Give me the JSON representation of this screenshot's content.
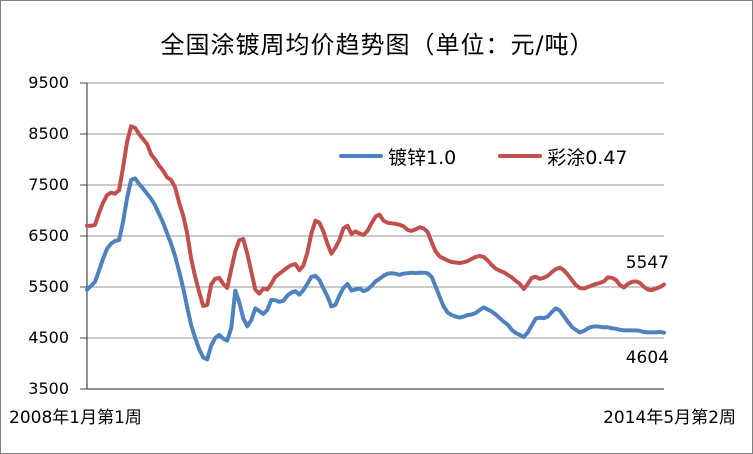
{
  "window": {
    "background": "#FFFFFF",
    "border_color": "#7F7F7F"
  },
  "chart_data": {
    "type": "line",
    "title": "全国涂镀周均价趋势图（单位：元/吨）",
    "grid": true,
    "legend_position": "inside-top-right-of-center",
    "x_axis": {
      "start_label": "2008年1月第1周",
      "end_label": "2014年5月第2周"
    },
    "y_axis": {
      "min": 3500,
      "max": 9500,
      "step": 1000,
      "ticks": [
        9500,
        8500,
        7500,
        6500,
        5500,
        4500,
        3500
      ]
    },
    "axis_color": "#4a4a4a",
    "grid_color": "#969696",
    "series": [
      {
        "name": "镀锌1.0",
        "color": "#4F81BD",
        "end_label": "4604",
        "end_label_side": "below",
        "values": [
          5450,
          5520,
          5600,
          5820,
          6050,
          6250,
          6350,
          6400,
          6420,
          6780,
          7250,
          7600,
          7630,
          7520,
          7430,
          7330,
          7230,
          7100,
          6930,
          6760,
          6550,
          6350,
          6100,
          5800,
          5480,
          5100,
          4750,
          4500,
          4280,
          4120,
          4080,
          4350,
          4500,
          4560,
          4490,
          4450,
          4700,
          5430,
          5200,
          4880,
          4730,
          4850,
          5080,
          5030,
          4970,
          5050,
          5250,
          5240,
          5210,
          5230,
          5330,
          5390,
          5420,
          5350,
          5440,
          5560,
          5700,
          5720,
          5640,
          5470,
          5320,
          5120,
          5150,
          5330,
          5480,
          5560,
          5430,
          5450,
          5470,
          5420,
          5450,
          5520,
          5610,
          5660,
          5720,
          5760,
          5770,
          5760,
          5740,
          5760,
          5770,
          5780,
          5770,
          5780,
          5780,
          5770,
          5700,
          5510,
          5310,
          5120,
          5000,
          4950,
          4920,
          4900,
          4920,
          4950,
          4960,
          4990,
          5050,
          5100,
          5060,
          5020,
          4960,
          4890,
          4820,
          4760,
          4660,
          4600,
          4560,
          4520,
          4610,
          4750,
          4880,
          4900,
          4890,
          4920,
          5010,
          5080,
          5040,
          4930,
          4820,
          4720,
          4660,
          4610,
          4640,
          4690,
          4720,
          4730,
          4720,
          4710,
          4710,
          4690,
          4680,
          4660,
          4650,
          4650,
          4650,
          4650,
          4640,
          4620,
          4610,
          4610,
          4610,
          4620,
          4604
        ]
      },
      {
        "name": "彩涂0.47",
        "color": "#C0504D",
        "end_label": "5547",
        "end_label_side": "above",
        "values": [
          6700,
          6700,
          6720,
          6950,
          7150,
          7300,
          7350,
          7330,
          7400,
          7850,
          8350,
          8650,
          8620,
          8500,
          8400,
          8300,
          8100,
          8000,
          7880,
          7780,
          7650,
          7600,
          7450,
          7150,
          6900,
          6550,
          6050,
          5700,
          5400,
          5130,
          5150,
          5550,
          5660,
          5680,
          5560,
          5480,
          5850,
          6200,
          6420,
          6440,
          6150,
          5800,
          5450,
          5370,
          5470,
          5450,
          5560,
          5700,
          5760,
          5820,
          5880,
          5930,
          5950,
          5830,
          5920,
          6180,
          6550,
          6800,
          6760,
          6590,
          6350,
          6150,
          6270,
          6420,
          6650,
          6700,
          6540,
          6590,
          6550,
          6520,
          6600,
          6750,
          6880,
          6920,
          6800,
          6760,
          6750,
          6740,
          6720,
          6690,
          6620,
          6600,
          6630,
          6670,
          6650,
          6580,
          6380,
          6200,
          6100,
          6060,
          6020,
          5990,
          5980,
          5970,
          5985,
          6010,
          6050,
          6090,
          6110,
          6090,
          6020,
          5930,
          5860,
          5820,
          5790,
          5740,
          5690,
          5620,
          5560,
          5460,
          5560,
          5680,
          5700,
          5660,
          5680,
          5720,
          5790,
          5850,
          5880,
          5830,
          5740,
          5640,
          5540,
          5480,
          5470,
          5500,
          5530,
          5560,
          5580,
          5610,
          5690,
          5680,
          5640,
          5540,
          5490,
          5560,
          5600,
          5610,
          5580,
          5500,
          5450,
          5440,
          5470,
          5500,
          5547
        ]
      }
    ]
  }
}
